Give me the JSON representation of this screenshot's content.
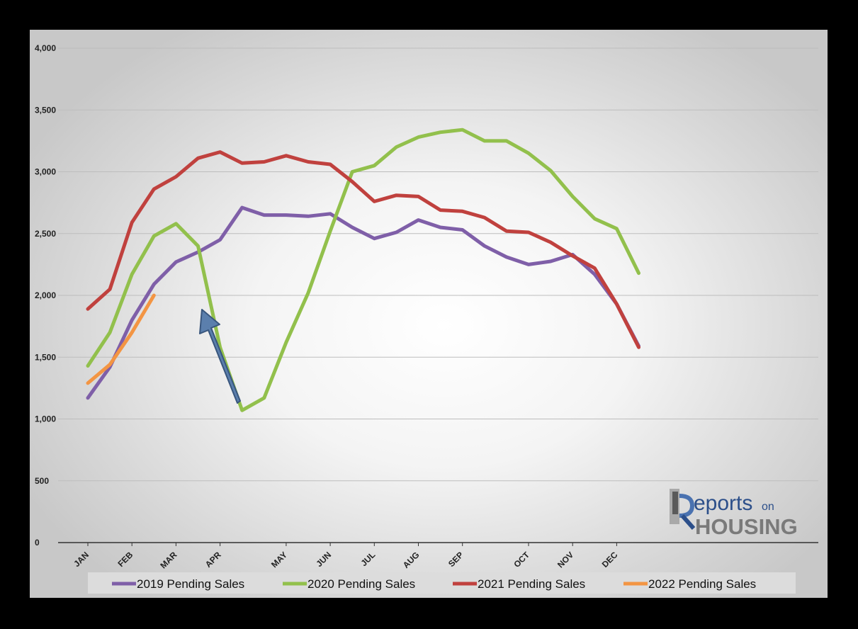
{
  "chart_data": {
    "type": "line",
    "title": "",
    "xlabel": "",
    "ylabel": "",
    "ylim": [
      0,
      4000
    ],
    "yticks": [
      0,
      500,
      1000,
      1500,
      2000,
      2500,
      3000,
      3500,
      4000
    ],
    "ytick_labels": [
      "0",
      "500",
      "1,000",
      "1,500",
      "2,000",
      "2,500",
      "3,000",
      "3,500",
      "4,000"
    ],
    "x_month_labels": [
      {
        "label": "JAN",
        "index": 0
      },
      {
        "label": "FEB",
        "index": 2
      },
      {
        "label": "MAR",
        "index": 4
      },
      {
        "label": "APR",
        "index": 6
      },
      {
        "label": "MAY",
        "index": 9
      },
      {
        "label": "JUN",
        "index": 11
      },
      {
        "label": "JUL",
        "index": 13
      },
      {
        "label": "AUG",
        "index": 15
      },
      {
        "label": "SEP",
        "index": 17
      },
      {
        "label": "OCT",
        "index": 20
      },
      {
        "label": "NOV",
        "index": 22
      },
      {
        "label": "DEC",
        "index": 24
      }
    ],
    "grid": true,
    "legend_position": "bottom",
    "series": [
      {
        "name": "2019 Pending Sales",
        "color": "#7f5fa8",
        "values": [
          1170,
          1420,
          1800,
          2090,
          2270,
          2350,
          2450,
          2710,
          2650,
          2650,
          2640,
          2660,
          2550,
          2460,
          2510,
          2610,
          2550,
          2530,
          2400,
          2310,
          2250,
          2275,
          2330,
          2170,
          1930,
          1590
        ]
      },
      {
        "name": "2020 Pending Sales",
        "color": "#92c04c",
        "values": [
          1430,
          1700,
          2170,
          2480,
          2580,
          2400,
          1580,
          1070,
          1170,
          1620,
          2020,
          2520,
          3000,
          3050,
          3200,
          3280,
          3320,
          3340,
          3250,
          3250,
          3150,
          3010,
          2800,
          2620,
          2540,
          2180
        ]
      },
      {
        "name": "2021 Pending Sales",
        "color": "#c0413e",
        "values": [
          1890,
          2050,
          2590,
          2860,
          2960,
          3110,
          3160,
          3070,
          3080,
          3130,
          3080,
          3060,
          2920,
          2760,
          2810,
          2800,
          2690,
          2680,
          2630,
          2520,
          2510,
          2430,
          2320,
          2220,
          1930,
          1580
        ]
      },
      {
        "name": "2022 Pending Sales",
        "color": "#f39543",
        "values": [
          1290,
          1440,
          1700,
          2000
        ]
      }
    ]
  },
  "logo": {
    "text_top": "eports",
    "text_on": "on",
    "text_bottom": "HOUSING"
  }
}
